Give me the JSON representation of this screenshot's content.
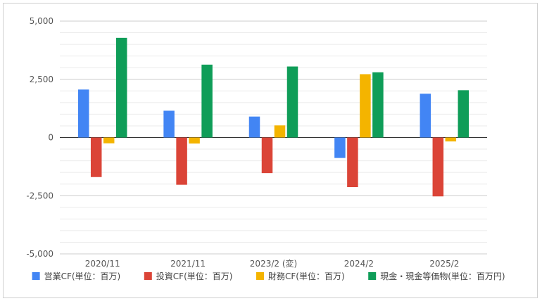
{
  "chart_data": {
    "type": "bar",
    "title": "",
    "xlabel": "",
    "ylabel": "",
    "ylim": [
      -5000,
      5000
    ],
    "yticks": [
      5000,
      2500,
      0,
      -2500,
      -5000
    ],
    "ytick_labels": [
      "5,000",
      "2,500",
      "0",
      "-2,500",
      "-5,000"
    ],
    "grid": true,
    "legend_position": "bottom",
    "categories": [
      "2020/11",
      "2021/11",
      "2023/2 (変)",
      "2024/2",
      "2025/2"
    ],
    "series": [
      {
        "name": "営業CF(単位：百万)",
        "color": "#4285F4",
        "values": [
          2060,
          1150,
          900,
          -880,
          1880
        ]
      },
      {
        "name": "投資CF(単位：百万)",
        "color": "#DB4437",
        "values": [
          -1700,
          -2030,
          -1530,
          -2130,
          -2530
        ]
      },
      {
        "name": "財務CF(単位：百万)",
        "color": "#F4B400",
        "values": [
          -250,
          -260,
          520,
          2720,
          -170
        ]
      },
      {
        "name": "現金・現金等価物(単位：百万円)",
        "color": "#0F9D58",
        "values": [
          4280,
          3130,
          3050,
          2800,
          2030
        ]
      }
    ]
  }
}
